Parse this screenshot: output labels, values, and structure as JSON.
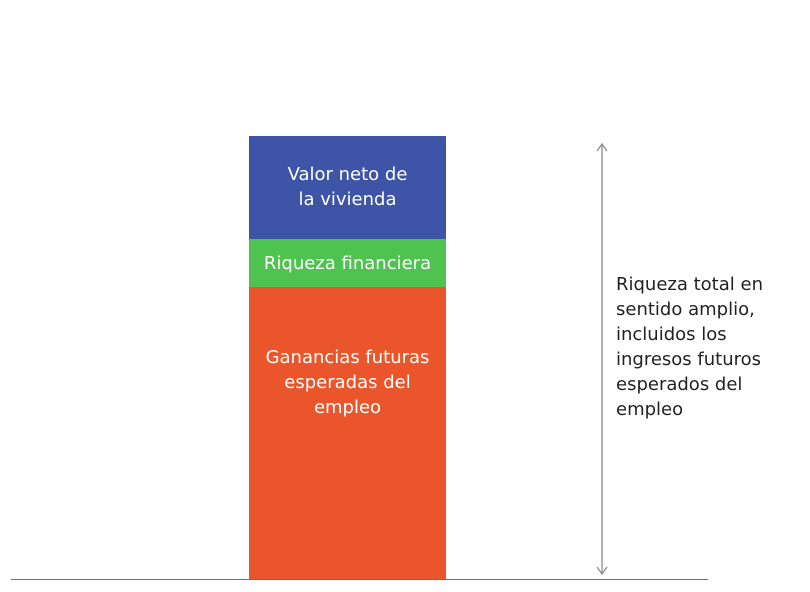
{
  "colors": {
    "housing": "#3e54a6",
    "financial": "#4ec34f",
    "earnings": "#eb552b",
    "axis": "#6d6e71",
    "arrow": "#8c8c8c"
  },
  "segments": {
    "housing": "Valor neto de\nla vivienda",
    "financial": "Riqueza financiera",
    "earnings": "Ganancias futuras\nesperadas del\nempleo"
  },
  "total_label": "Riqueza total en\nsentido amplio,\nincluidos los\ningresos futuros\nesperados del\nempleo"
}
